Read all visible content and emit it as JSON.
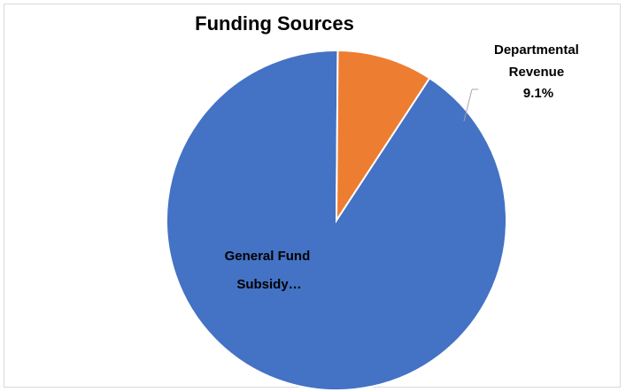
{
  "chart_data": {
    "type": "pie",
    "title": "Funding Sources",
    "slices": [
      {
        "label": "General Fund Subsidy...",
        "value": 90.9,
        "color": "#4472c4",
        "label_lines": [
          "General Fund",
          "Subsidy…"
        ]
      },
      {
        "label": "Departmental Revenue",
        "value": 9.1,
        "color": "#ed7d31",
        "label_lines": [
          "Departmental",
          "Revenue",
          "9.1%"
        ]
      }
    ],
    "legend": "none"
  }
}
